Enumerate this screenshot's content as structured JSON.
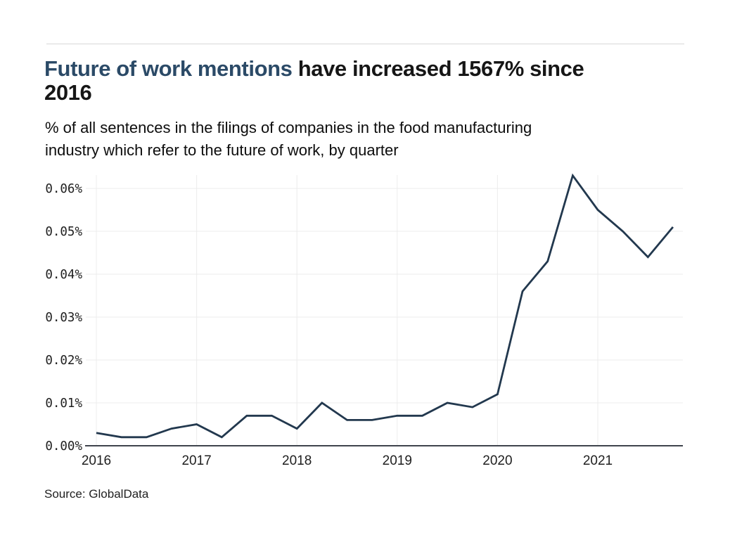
{
  "page": {
    "background": "#ffffff",
    "top_rule_color": "#d8d8d8"
  },
  "header": {
    "title_highlight": "Future of work mentions",
    "title_rest_line1": " have increased 1567% since",
    "title_line2": "2016",
    "title_highlight_color": "#2b4a67",
    "title_text_color": "#161616",
    "subtitle_lines": [
      "% of all sentences in the filings of companies in the food manufacturing",
      "industry which refer to the future of work, by quarter"
    ]
  },
  "footer": {
    "source": "Source: GlobalData"
  },
  "chart_data": {
    "type": "line",
    "title": "Future of work mentions have increased 1567% since 2016",
    "subtitle": "% of all sentences in the filings of companies in the food manufacturing industry which refer to the future of work, by quarter",
    "x_label": "",
    "y_label": "",
    "x_quarters": [
      "2016 Q1",
      "2016 Q2",
      "2016 Q3",
      "2016 Q4",
      "2017 Q1",
      "2017 Q2",
      "2017 Q3",
      "2017 Q4",
      "2018 Q1",
      "2018 Q2",
      "2018 Q3",
      "2018 Q4",
      "2019 Q1",
      "2019 Q2",
      "2019 Q3",
      "2019 Q4",
      "2020 Q1",
      "2020 Q2",
      "2020 Q3",
      "2020 Q4",
      "2021 Q1",
      "2021 Q2",
      "2021 Q3",
      "2021 Q4"
    ],
    "series": [
      {
        "name": "Future of work mentions (% of sentences)",
        "values": [
          0.003,
          0.002,
          0.002,
          0.004,
          0.005,
          0.002,
          0.007,
          0.007,
          0.004,
          0.01,
          0.006,
          0.006,
          0.007,
          0.007,
          0.01,
          0.009,
          0.012,
          0.036,
          0.043,
          0.063,
          0.055,
          0.05,
          0.044,
          0.051
        ]
      }
    ],
    "x_tick_labels": [
      "2016",
      "2017",
      "2018",
      "2019",
      "2020",
      "2021"
    ],
    "y_tick_labels": [
      "0.00%",
      "0.01%",
      "0.02%",
      "0.03%",
      "0.04%",
      "0.05%",
      "0.06%"
    ],
    "y_tick_values": [
      0,
      0.01,
      0.02,
      0.03,
      0.04,
      0.05,
      0.06
    ],
    "ylim": [
      0,
      0.063
    ],
    "grid": true,
    "legend_position": "none",
    "line_color": "#22384e",
    "grid_color": "#ececec",
    "axis_line_color": "#3f444d",
    "tick_label_color": "#1f1f1f"
  }
}
